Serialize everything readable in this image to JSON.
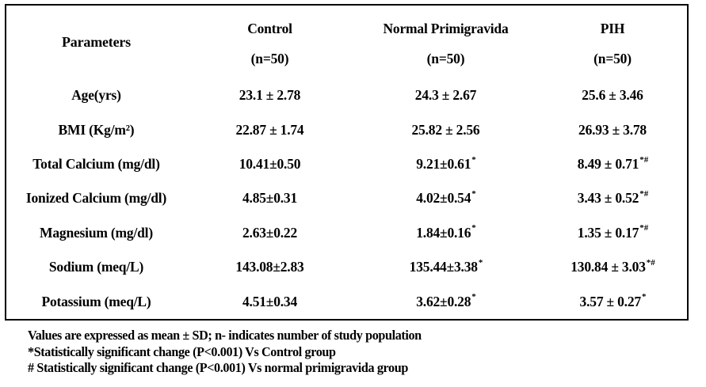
{
  "page": {
    "background_color": "#ffffff",
    "text_color": "#000000",
    "border_color": "#000000"
  },
  "table": {
    "header": {
      "parameters_label": "Parameters",
      "groups": [
        {
          "name": "Control",
          "n": "(n=50)"
        },
        {
          "name": "Normal Primigravida",
          "n": "(n=50)"
        },
        {
          "name": "PIH",
          "n": "(n=50)"
        }
      ]
    },
    "rows": [
      {
        "param": "Age(yrs)",
        "values": [
          {
            "v": "23.1 ± 2.78",
            "sup": ""
          },
          {
            "v": "24.3 ± 2.67",
            "sup": ""
          },
          {
            "v": "25.6 ± 3.46",
            "sup": ""
          }
        ]
      },
      {
        "param": "BMI (Kg/m²)",
        "values": [
          {
            "v": "22.87 ± 1.74",
            "sup": ""
          },
          {
            "v": "25.82 ± 2.56",
            "sup": ""
          },
          {
            "v": "26.93 ± 3.78",
            "sup": ""
          }
        ]
      },
      {
        "param": "Total Calcium (mg/dl)",
        "values": [
          {
            "v": "10.41±0.50",
            "sup": ""
          },
          {
            "v": "9.21±0.61",
            "sup": "*"
          },
          {
            "v": "8.49 ± 0.71",
            "sup": "*#"
          }
        ]
      },
      {
        "param": "Ionized Calcium (mg/dl)",
        "values": [
          {
            "v": "4.85±0.31",
            "sup": ""
          },
          {
            "v": "4.02±0.54",
            "sup": "*"
          },
          {
            "v": "3.43 ± 0.52",
            "sup": "*#"
          }
        ]
      },
      {
        "param": "Magnesium (mg/dl)",
        "values": [
          {
            "v": "2.63±0.22",
            "sup": ""
          },
          {
            "v": "1.84±0.16",
            "sup": "*"
          },
          {
            "v": "1.35 ± 0.17",
            "sup": "*#"
          }
        ]
      },
      {
        "param": "Sodium (meq/L)",
        "values": [
          {
            "v": "143.08±2.83",
            "sup": ""
          },
          {
            "v": "135.44±3.38",
            "sup": "*"
          },
          {
            "v": "130.84 ± 3.03",
            "sup": "*#"
          }
        ]
      },
      {
        "param": "Potassium (meq/L)",
        "values": [
          {
            "v": "4.51±0.34",
            "sup": ""
          },
          {
            "v": "3.62±0.28",
            "sup": "*"
          },
          {
            "v": "3.57 ± 0.27",
            "sup": "*"
          }
        ]
      }
    ]
  },
  "footnotes": [
    "Values are expressed as mean ± SD; n- indicates number of study population",
    "*Statistically significant change (P<0.001) Vs Control group",
    "# Statistically significant change (P<0.001) Vs normal primigravida group"
  ]
}
